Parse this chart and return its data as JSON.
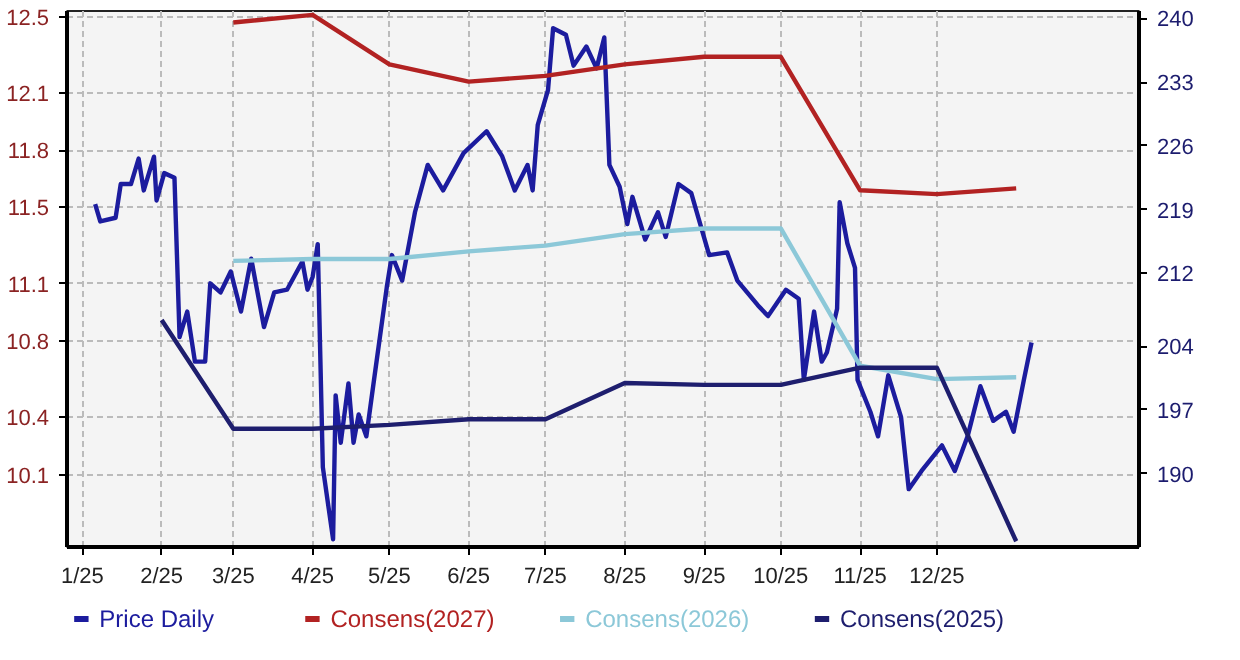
{
  "chart_data": {
    "type": "line",
    "grid": true,
    "legend": "bottom",
    "line_style": "solid",
    "xlim": [
      "2024-12-26",
      "2026-02-18"
    ],
    "xticks": [
      {
        "value": "2025-01-01",
        "label": "1/25"
      },
      {
        "value": "2025-02-01",
        "label": "2/25"
      },
      {
        "value": "2025-03-01",
        "label": "3/25"
      },
      {
        "value": "2025-04-01",
        "label": "4/25"
      },
      {
        "value": "2025-05-01",
        "label": "5/25"
      },
      {
        "value": "2025-06-01",
        "label": "6/25"
      },
      {
        "value": "2025-07-01",
        "label": "7/25"
      },
      {
        "value": "2025-08-01",
        "label": "8/25"
      },
      {
        "value": "2025-09-01",
        "label": "9/25"
      },
      {
        "value": "2025-10-01",
        "label": "10/25"
      },
      {
        "value": "2025-11-01",
        "label": "11/25"
      },
      {
        "value": "2025-12-01",
        "label": "12/25"
      }
    ],
    "ylim": [
      9.72,
      12.53
    ],
    "yticks": [
      10.1,
      10.4,
      10.8,
      11.1,
      11.5,
      11.8,
      12.1,
      12.5
    ],
    "y2lim": [
      181.95,
      240.8
    ],
    "y2ticks": [
      190,
      197,
      204,
      212,
      219,
      226,
      233,
      240
    ],
    "series": [
      {
        "name": "Price Daily",
        "color": "#1c1c9e",
        "axis": "y2",
        "x": [
          "2025-01-06",
          "2025-01-08",
          "2025-01-14",
          "2025-01-16",
          "2025-01-20",
          "2025-01-23",
          "2025-01-25",
          "2025-01-29",
          "2025-01-30",
          "2025-02-02",
          "2025-02-06",
          "2025-02-08",
          "2025-02-11",
          "2025-02-14",
          "2025-02-18",
          "2025-02-20",
          "2025-02-24",
          "2025-02-28",
          "2025-03-04",
          "2025-03-08",
          "2025-03-13",
          "2025-03-17",
          "2025-03-22",
          "2025-03-28",
          "2025-03-30",
          "2025-04-01",
          "2025-04-03",
          "2025-04-05",
          "2025-04-09",
          "2025-04-10",
          "2025-04-12",
          "2025-04-15",
          "2025-04-17",
          "2025-04-19",
          "2025-04-22",
          "2025-04-25",
          "2025-04-30",
          "2025-05-02",
          "2025-05-06",
          "2025-05-11",
          "2025-05-16",
          "2025-05-22",
          "2025-05-30",
          "2025-06-08",
          "2025-06-14",
          "2025-06-19",
          "2025-06-24",
          "2025-06-26",
          "2025-06-28",
          "2025-07-02",
          "2025-07-04",
          "2025-07-09",
          "2025-07-12",
          "2025-07-17",
          "2025-07-21",
          "2025-07-24",
          "2025-07-26",
          "2025-07-30",
          "2025-08-02",
          "2025-08-04",
          "2025-08-09",
          "2025-08-14",
          "2025-08-17",
          "2025-08-22",
          "2025-08-27",
          "2025-09-03",
          "2025-09-10",
          "2025-09-14",
          "2025-09-22",
          "2025-09-26",
          "2025-10-03",
          "2025-10-08",
          "2025-10-10",
          "2025-10-14",
          "2025-10-17",
          "2025-10-19",
          "2025-10-23",
          "2025-10-24",
          "2025-10-27",
          "2025-10-30",
          "2025-10-31",
          "2025-11-05",
          "2025-11-08",
          "2025-11-12",
          "2025-11-17",
          "2025-11-20",
          "2025-11-25",
          "2025-12-03",
          "2025-12-08",
          "2025-12-13",
          "2025-12-18",
          "2025-12-23",
          "2025-12-28",
          "2025-12-31",
          "2026-01-04",
          "2026-01-07"
        ],
        "values": [
          219.6,
          217.7,
          218.1,
          221.8,
          221.8,
          224.6,
          221.1,
          224.8,
          220,
          223,
          222.5,
          205,
          207.8,
          202.3,
          202.3,
          210.9,
          209.9,
          212.2,
          207.8,
          213.6,
          206.1,
          209.9,
          210.2,
          213.3,
          210.2,
          211.6,
          215.2,
          190.7,
          182.8,
          198.6,
          193.4,
          199.9,
          193.4,
          196.5,
          194.1,
          200.3,
          210.5,
          214,
          211.2,
          218.7,
          223.9,
          221.1,
          225.2,
          227.6,
          224.9,
          221.1,
          223.9,
          221.1,
          228.3,
          232.1,
          238.9,
          238.2,
          234.8,
          236.9,
          234.5,
          237.9,
          223.9,
          221.5,
          217.4,
          220.4,
          215.7,
          218.7,
          216,
          221.8,
          220.8,
          214,
          214.3,
          211.2,
          208.5,
          207.3,
          210.2,
          209.2,
          200.3,
          207.8,
          202.3,
          203.3,
          208.1,
          219.8,
          215.3,
          212.6,
          200.3,
          196.8,
          194.1,
          200.8,
          196.2,
          188.3,
          190.3,
          193.1,
          190.3,
          194.1,
          199.6,
          195.8,
          196.8,
          194.6,
          200.3,
          204.4
        ]
      },
      {
        "name": "Consens(2027)",
        "color": "#b22222",
        "x": [
          "2025-03-01",
          "2025-04-01",
          "2025-05-01",
          "2025-06-01",
          "2025-07-01",
          "2025-08-01",
          "2025-09-01",
          "2025-10-01",
          "2025-11-01",
          "2025-12-01",
          "2026-01-01"
        ],
        "values": [
          12.47,
          12.51,
          12.25,
          12.16,
          12.19,
          12.25,
          12.29,
          12.29,
          11.59,
          11.57,
          11.6
        ]
      },
      {
        "name": "Consens(2026)",
        "color": "#8cc8d8",
        "x": [
          "2025-03-01",
          "2025-04-01",
          "2025-05-01",
          "2025-06-01",
          "2025-07-01",
          "2025-08-01",
          "2025-09-01",
          "2025-10-01",
          "2025-11-01",
          "2025-12-01",
          "2026-01-01"
        ],
        "values": [
          11.22,
          11.23,
          11.23,
          11.27,
          11.3,
          11.36,
          11.39,
          11.39,
          10.67,
          10.6,
          10.61
        ]
      },
      {
        "name": "Consens(2025)",
        "color": "#1e1e6e",
        "x": [
          "2025-02-01",
          "2025-03-01",
          "2025-04-01",
          "2025-05-01",
          "2025-06-01",
          "2025-07-01",
          "2025-08-01",
          "2025-09-01",
          "2025-10-01",
          "2025-11-01",
          "2025-12-01",
          "2026-01-01"
        ],
        "values": [
          10.91,
          10.34,
          10.34,
          10.36,
          10.39,
          10.39,
          10.58,
          10.57,
          10.57,
          10.66,
          10.66,
          9.75
        ]
      }
    ]
  }
}
